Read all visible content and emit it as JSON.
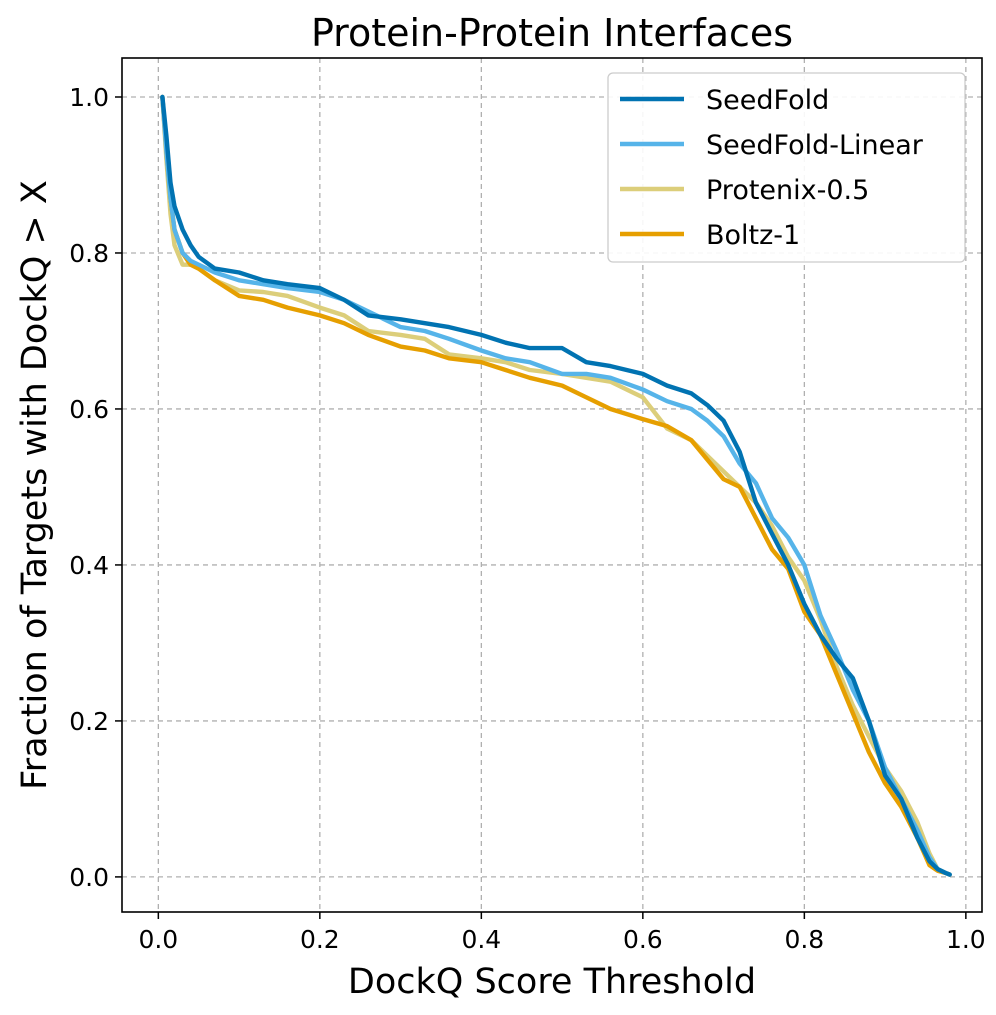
{
  "chart_data": {
    "type": "line",
    "title": "Protein-Protein Interfaces",
    "xlabel": "DockQ Score Threshold",
    "ylabel": "Fraction of Targets with DockQ > X",
    "xlim": [
      -0.045,
      1.02
    ],
    "ylim": [
      -0.045,
      1.05
    ],
    "xticks": [
      0.0,
      0.2,
      0.4,
      0.6,
      0.8,
      1.0
    ],
    "xtick_labels": [
      "0.0",
      "0.2",
      "0.4",
      "0.6",
      "0.8",
      "1.0"
    ],
    "yticks": [
      0.0,
      0.2,
      0.4,
      0.6,
      0.8,
      1.0
    ],
    "ytick_labels": [
      "0.0",
      "0.2",
      "0.4",
      "0.6",
      "0.8",
      "1.0"
    ],
    "grid": true,
    "legend_position": "top-right",
    "series": [
      {
        "name": "SeedFold",
        "color": "#0173b2",
        "x": [
          0.005,
          0.01,
          0.015,
          0.02,
          0.03,
          0.04,
          0.05,
          0.07,
          0.1,
          0.13,
          0.16,
          0.2,
          0.23,
          0.26,
          0.3,
          0.33,
          0.36,
          0.4,
          0.43,
          0.46,
          0.5,
          0.53,
          0.56,
          0.6,
          0.63,
          0.66,
          0.68,
          0.7,
          0.72,
          0.74,
          0.76,
          0.78,
          0.8,
          0.82,
          0.84,
          0.86,
          0.88,
          0.9,
          0.92,
          0.94,
          0.955,
          0.965,
          0.975,
          0.98
        ],
        "y": [
          1.0,
          0.95,
          0.89,
          0.86,
          0.83,
          0.81,
          0.795,
          0.78,
          0.775,
          0.765,
          0.76,
          0.755,
          0.74,
          0.72,
          0.715,
          0.71,
          0.705,
          0.695,
          0.685,
          0.678,
          0.678,
          0.66,
          0.655,
          0.645,
          0.63,
          0.62,
          0.605,
          0.585,
          0.545,
          0.48,
          0.44,
          0.4,
          0.35,
          0.31,
          0.28,
          0.255,
          0.2,
          0.13,
          0.1,
          0.05,
          0.02,
          0.01,
          0.005,
          0.003
        ]
      },
      {
        "name": "SeedFold-Linear",
        "color": "#56b4e9",
        "x": [
          0.005,
          0.01,
          0.015,
          0.02,
          0.03,
          0.04,
          0.05,
          0.07,
          0.1,
          0.13,
          0.16,
          0.2,
          0.23,
          0.26,
          0.3,
          0.33,
          0.36,
          0.4,
          0.43,
          0.46,
          0.5,
          0.53,
          0.56,
          0.6,
          0.63,
          0.66,
          0.68,
          0.7,
          0.72,
          0.74,
          0.76,
          0.78,
          0.8,
          0.82,
          0.84,
          0.86,
          0.88,
          0.9,
          0.92,
          0.94,
          0.955,
          0.965,
          0.975,
          0.98
        ],
        "y": [
          1.0,
          0.93,
          0.87,
          0.83,
          0.8,
          0.79,
          0.785,
          0.775,
          0.765,
          0.76,
          0.755,
          0.75,
          0.74,
          0.725,
          0.705,
          0.7,
          0.69,
          0.675,
          0.665,
          0.66,
          0.645,
          0.645,
          0.64,
          0.625,
          0.61,
          0.6,
          0.585,
          0.565,
          0.53,
          0.505,
          0.46,
          0.435,
          0.4,
          0.335,
          0.29,
          0.24,
          0.2,
          0.14,
          0.1,
          0.06,
          0.025,
          0.01,
          0.005,
          0.003
        ]
      },
      {
        "name": "Protenix-0.5",
        "color": "#dcce7a",
        "x": [
          0.005,
          0.01,
          0.015,
          0.02,
          0.03,
          0.04,
          0.05,
          0.07,
          0.1,
          0.13,
          0.16,
          0.2,
          0.23,
          0.26,
          0.3,
          0.33,
          0.36,
          0.4,
          0.43,
          0.46,
          0.5,
          0.53,
          0.56,
          0.6,
          0.63,
          0.66,
          0.68,
          0.7,
          0.72,
          0.74,
          0.76,
          0.78,
          0.8,
          0.82,
          0.84,
          0.86,
          0.88,
          0.9,
          0.92,
          0.94,
          0.955,
          0.965,
          0.975,
          0.98
        ],
        "y": [
          1.0,
          0.92,
          0.85,
          0.81,
          0.785,
          0.785,
          0.78,
          0.765,
          0.752,
          0.75,
          0.745,
          0.73,
          0.72,
          0.7,
          0.695,
          0.69,
          0.67,
          0.665,
          0.66,
          0.65,
          0.645,
          0.64,
          0.635,
          0.615,
          0.575,
          0.56,
          0.54,
          0.52,
          0.5,
          0.48,
          0.45,
          0.41,
          0.38,
          0.33,
          0.27,
          0.22,
          0.18,
          0.14,
          0.11,
          0.07,
          0.03,
          0.01,
          0.005,
          0.003
        ]
      },
      {
        "name": "Boltz-1",
        "color": "#e69f00",
        "x": [
          0.005,
          0.01,
          0.015,
          0.02,
          0.03,
          0.04,
          0.05,
          0.07,
          0.1,
          0.13,
          0.16,
          0.2,
          0.23,
          0.26,
          0.3,
          0.33,
          0.36,
          0.4,
          0.43,
          0.46,
          0.5,
          0.53,
          0.56,
          0.6,
          0.63,
          0.66,
          0.68,
          0.7,
          0.72,
          0.74,
          0.76,
          0.78,
          0.8,
          0.82,
          0.84,
          0.86,
          0.88,
          0.9,
          0.92,
          0.94,
          0.955,
          0.965,
          0.975,
          0.98
        ],
        "y": [
          1.0,
          0.93,
          0.87,
          0.83,
          0.8,
          0.785,
          0.78,
          0.765,
          0.745,
          0.74,
          0.73,
          0.72,
          0.71,
          0.695,
          0.68,
          0.675,
          0.665,
          0.66,
          0.65,
          0.64,
          0.63,
          0.615,
          0.6,
          0.587,
          0.578,
          0.56,
          0.535,
          0.51,
          0.5,
          0.46,
          0.42,
          0.395,
          0.34,
          0.31,
          0.26,
          0.21,
          0.16,
          0.12,
          0.09,
          0.05,
          0.015,
          0.008,
          0.005,
          0.003
        ]
      }
    ]
  }
}
